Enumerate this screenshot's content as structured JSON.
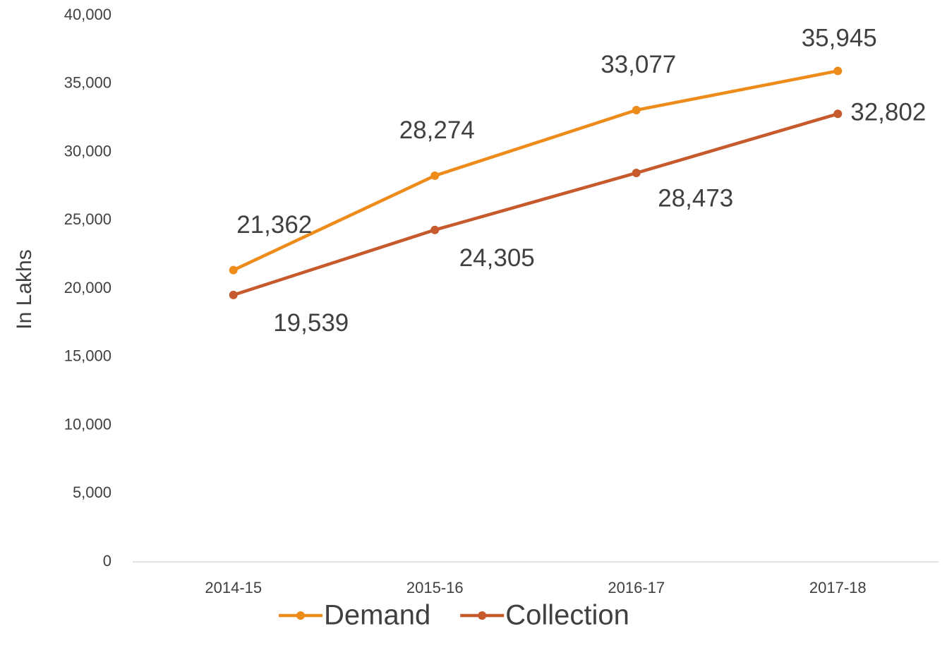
{
  "chart_data": {
    "type": "line",
    "y_label": "In Lakhs",
    "categories": [
      "2014-15",
      "2015-16",
      "2016-17",
      "2017-18"
    ],
    "series": [
      {
        "name": "Demand",
        "color": "#ed8b1b",
        "values": [
          21362,
          28274,
          33077,
          35945
        ],
        "value_labels": [
          "21,362",
          "28,274",
          "33,077",
          "35,945"
        ]
      },
      {
        "name": "Collection",
        "color": "#c65a2c",
        "values": [
          19539,
          24305,
          28473,
          32802
        ],
        "value_labels": [
          "19,539",
          "24,305",
          "28,473",
          "32,802"
        ]
      }
    ],
    "ylim": [
      0,
      40000
    ],
    "yticks": [
      0,
      {
        "value": 5000,
        "label": "5,000"
      },
      {
        "value": 10000,
        "label": "10,000"
      },
      {
        "value": 15000,
        "label": "15,000"
      },
      {
        "value": 20000,
        "label": "20,000"
      },
      {
        "value": 25000,
        "label": "25,000"
      },
      {
        "value": 30000,
        "label": "30,000"
      },
      {
        "value": 35000,
        "label": "35,000"
      },
      {
        "value": 40000,
        "label": "40,000"
      }
    ],
    "grid": false,
    "legend": "bottom"
  }
}
